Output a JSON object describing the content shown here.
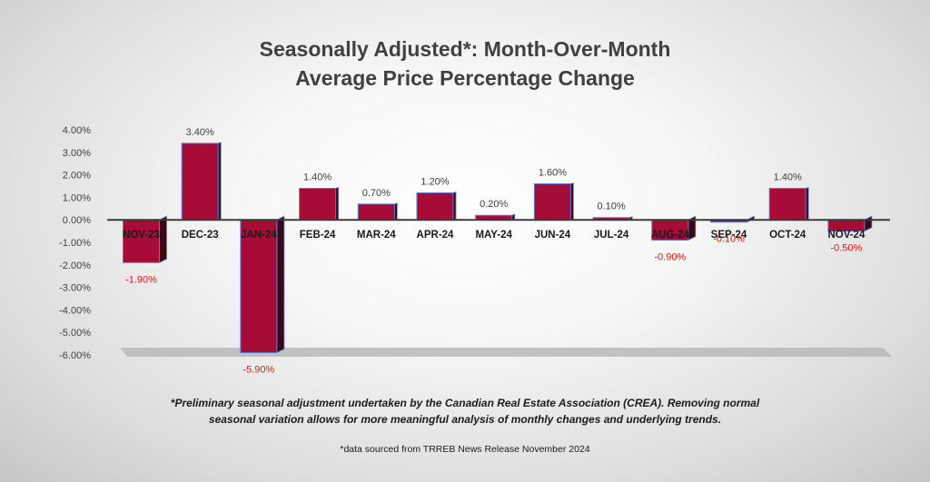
{
  "chart_data": {
    "type": "bar",
    "title": [
      "Seasonally Adjusted*:  Month-Over-Month",
      "Average Price Percentage Change"
    ],
    "categories": [
      "NOV-23",
      "DEC-23",
      "JAN-24",
      "FEB-24",
      "MAR-24",
      "APR-24",
      "MAY-24",
      "JUN-24",
      "JUL-24",
      "AUG-24",
      "SEP-24",
      "OCT-24",
      "NOV-24"
    ],
    "values": [
      -1.9,
      3.4,
      -5.9,
      1.4,
      0.7,
      1.2,
      0.2,
      1.6,
      0.1,
      -0.9,
      -0.1,
      1.4,
      -0.5
    ],
    "data_labels": [
      "-1.90%",
      "3.40%",
      "-5.90%",
      "1.40%",
      "0.70%",
      "1.20%",
      "0.20%",
      "1.60%",
      "0.10%",
      "-0.90%",
      "-0.10%",
      "1.40%",
      "-0.50%"
    ],
    "y_ticks": [
      4,
      3,
      2,
      1,
      0,
      -1,
      -2,
      -3,
      -4,
      -5,
      -6
    ],
    "y_tick_labels": [
      "4.00%",
      "3.00%",
      "2.00%",
      "1.00%",
      "0.00%",
      "-1.00%",
      "-2.00%",
      "-3.00%",
      "-4.00%",
      "-5.00%",
      "-6.00%"
    ],
    "ylim": [
      -6,
      4
    ],
    "xlabel": "",
    "ylabel": "",
    "grid": false,
    "legend": "none",
    "colors": {
      "bar_front": "#a50c36",
      "bar_side": "#3a0712",
      "bar_edge": "#5b7ad2",
      "positive_label": "#404040",
      "negative_label": "#e8110f",
      "axis": "#3a3a3a",
      "floor": "#b9b9b9"
    }
  },
  "footnote": [
    "*Preliminary seasonal adjustment undertaken by the Canadian Real Estate Association (CREA).  Removing normal",
    "seasonal variation allows for more meaningful analysis of monthly changes and underlying trends."
  ],
  "source_note": "*data sourced from TRREB News Release November 2024"
}
